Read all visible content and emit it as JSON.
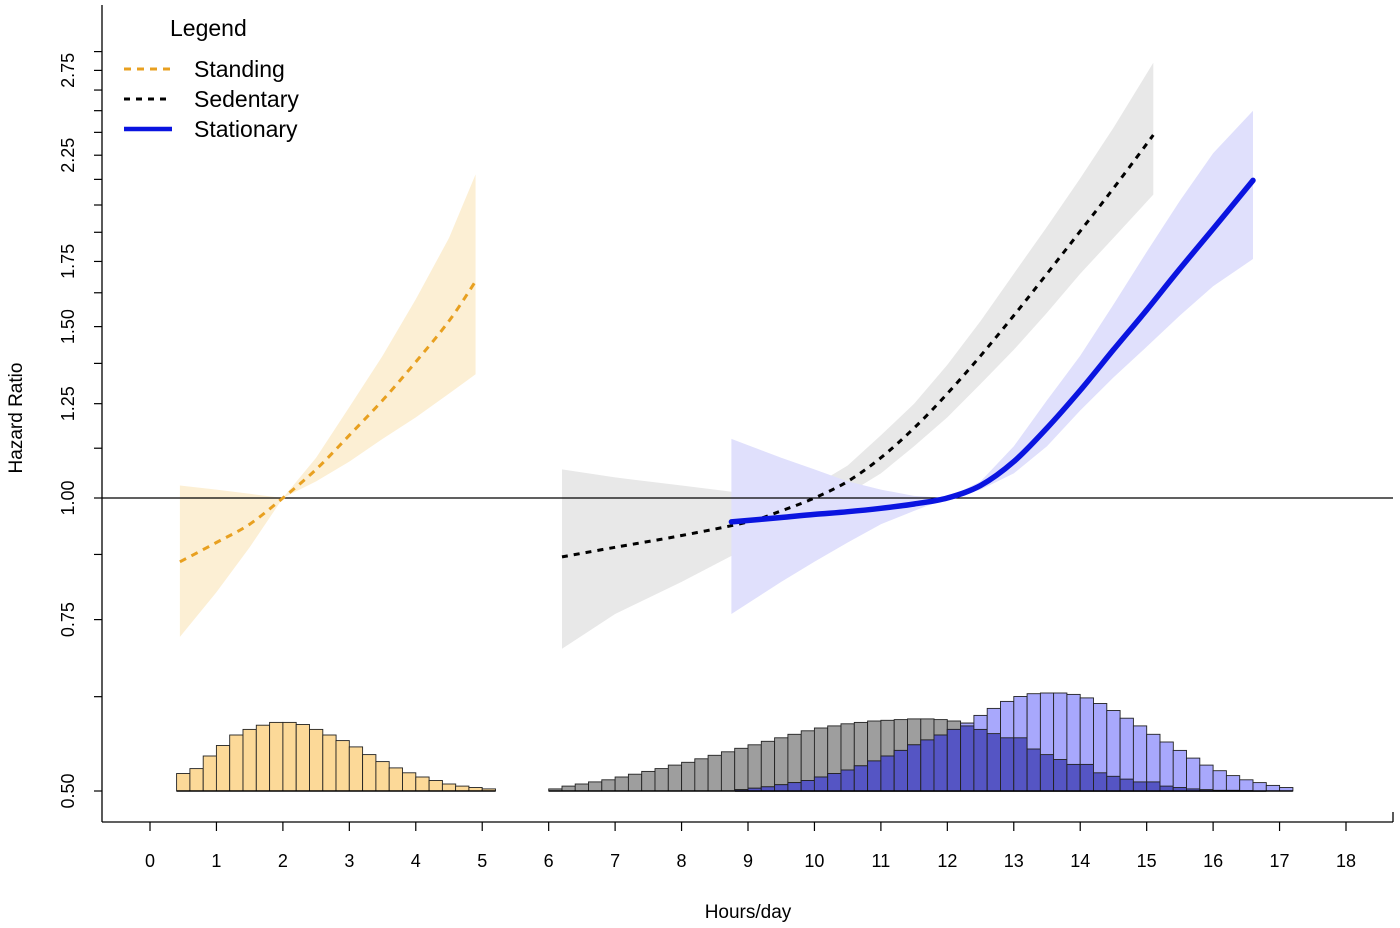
{
  "chart_data": {
    "type": "line",
    "title": "",
    "xlabel": "Hours/day",
    "ylabel": "Hazard Ratio",
    "xlim": [
      -0.7,
      18.7
    ],
    "ylim": [
      0.455,
      3.05
    ],
    "y_scale": "log",
    "x_ticks": [
      0,
      1,
      2,
      3,
      4,
      5,
      6,
      7,
      8,
      9,
      10,
      11,
      12,
      13,
      14,
      15,
      16,
      17,
      18
    ],
    "x_tick_labels": [
      "0",
      "1",
      "2",
      "3",
      "4",
      "5",
      "6",
      "7",
      "8",
      "9",
      "10",
      "11",
      "12",
      "13",
      "14",
      "15",
      "16",
      "17",
      "18"
    ],
    "y_ticks": [
      0.5,
      0.75,
      1.0,
      1.25,
      1.5,
      1.75,
      2.25,
      2.75
    ],
    "y_tick_labels": [
      "0.50",
      "0.75",
      "1.00",
      "1.25",
      "1.50",
      "1.75",
      "2.25",
      "2.75"
    ],
    "reference_line": 1.0,
    "legend": {
      "title": "Legend",
      "position": "top-left",
      "entries": [
        "Standing",
        "Sedentary",
        "Stationary"
      ]
    },
    "series": [
      {
        "name": "Standing",
        "color": "#E8A020",
        "band_color": "#FCEFD4",
        "style": "dashed",
        "x": [
          0.45,
          1.0,
          1.5,
          2.0,
          2.5,
          3.0,
          3.5,
          4.0,
          4.5,
          4.9
        ],
        "y": [
          0.86,
          0.9,
          0.94,
          1.0,
          1.07,
          1.16,
          1.26,
          1.38,
          1.52,
          1.67
        ],
        "lower": [
          0.72,
          0.8,
          0.89,
          1.0,
          1.04,
          1.09,
          1.15,
          1.21,
          1.28,
          1.34
        ],
        "upper": [
          1.03,
          1.02,
          1.01,
          1.0,
          1.1,
          1.24,
          1.4,
          1.6,
          1.85,
          2.15
        ]
      },
      {
        "name": "Sedentary",
        "color": "#000000",
        "band_color": "#E8E8E8",
        "style": "dotted",
        "x": [
          6.2,
          7.0,
          8.0,
          9.0,
          9.5,
          10.0,
          10.5,
          11.0,
          11.5,
          12.0,
          12.5,
          13.0,
          13.5,
          14.0,
          14.5,
          15.1
        ],
        "y": [
          0.87,
          0.89,
          0.915,
          0.945,
          0.97,
          1.0,
          1.04,
          1.1,
          1.18,
          1.28,
          1.4,
          1.54,
          1.7,
          1.88,
          2.08,
          2.36
        ],
        "lower": [
          0.7,
          0.76,
          0.82,
          0.89,
          0.93,
          0.97,
          1.01,
          1.06,
          1.13,
          1.21,
          1.31,
          1.42,
          1.55,
          1.7,
          1.85,
          2.05
        ],
        "upper": [
          1.07,
          1.05,
          1.03,
          1.01,
          1.005,
          1.03,
          1.08,
          1.16,
          1.25,
          1.37,
          1.52,
          1.7,
          1.9,
          2.13,
          2.4,
          2.8
        ]
      },
      {
        "name": "Stationary",
        "color": "#0A14E0",
        "band_color": "#E0E0FC",
        "style": "solid",
        "x": [
          8.75,
          9.5,
          10.0,
          10.5,
          11.0,
          11.5,
          12.0,
          12.5,
          13.0,
          13.5,
          14.0,
          14.5,
          15.0,
          15.5,
          16.0,
          16.6
        ],
        "y": [
          0.945,
          0.955,
          0.962,
          0.968,
          0.976,
          0.986,
          1.0,
          1.03,
          1.09,
          1.18,
          1.29,
          1.42,
          1.56,
          1.72,
          1.89,
          2.12
        ],
        "lower": [
          0.76,
          0.82,
          0.86,
          0.9,
          0.94,
          0.97,
          1.0,
          1.02,
          1.06,
          1.13,
          1.23,
          1.33,
          1.43,
          1.54,
          1.65,
          1.76
        ],
        "upper": [
          1.15,
          1.1,
          1.07,
          1.04,
          1.02,
          1.005,
          1.0,
          1.04,
          1.13,
          1.26,
          1.4,
          1.58,
          1.79,
          2.02,
          2.26,
          2.5
        ]
      }
    ],
    "histograms": [
      {
        "name": "Standing",
        "fill": "#FCD998",
        "x_start": 0.4,
        "bin_width": 0.2,
        "counts": [
          0.25,
          0.32,
          0.5,
          0.65,
          0.8,
          0.88,
          0.94,
          0.98,
          0.98,
          0.95,
          0.88,
          0.8,
          0.72,
          0.63,
          0.52,
          0.42,
          0.33,
          0.26,
          0.2,
          0.15,
          0.1,
          0.07,
          0.05,
          0.03
        ]
      },
      {
        "name": "Sedentary",
        "fill": "#9E9E9E",
        "x_start": 6.0,
        "bin_width": 0.2,
        "counts": [
          0.03,
          0.07,
          0.1,
          0.13,
          0.16,
          0.2,
          0.24,
          0.28,
          0.32,
          0.37,
          0.41,
          0.46,
          0.51,
          0.56,
          0.61,
          0.66,
          0.71,
          0.76,
          0.81,
          0.86,
          0.9,
          0.93,
          0.96,
          0.98,
          1.0,
          1.01,
          1.02,
          1.03,
          1.03,
          1.02,
          1.0,
          0.97,
          0.93,
          0.88,
          0.82,
          0.76,
          0.68,
          0.6,
          0.52,
          0.45,
          0.38,
          0.32,
          0.26,
          0.21,
          0.17,
          0.13,
          0.1,
          0.07,
          0.05,
          0.03,
          0.02,
          0.01,
          0.01,
          0.005
        ]
      },
      {
        "name": "Stationary",
        "fill": "#A8A8FC",
        "overlap_fill": "#5555C4",
        "x_start": 8.8,
        "bin_width": 0.2,
        "counts": [
          0.02,
          0.04,
          0.06,
          0.09,
          0.12,
          0.15,
          0.2,
          0.25,
          0.3,
          0.36,
          0.43,
          0.5,
          0.58,
          0.66,
          0.73,
          0.8,
          0.88,
          0.97,
          1.08,
          1.18,
          1.28,
          1.35,
          1.39,
          1.4,
          1.4,
          1.38,
          1.33,
          1.25,
          1.15,
          1.04,
          0.93,
          0.81,
          0.7,
          0.58,
          0.47,
          0.37,
          0.29,
          0.22,
          0.16,
          0.12,
          0.08,
          0.05
        ]
      }
    ]
  }
}
